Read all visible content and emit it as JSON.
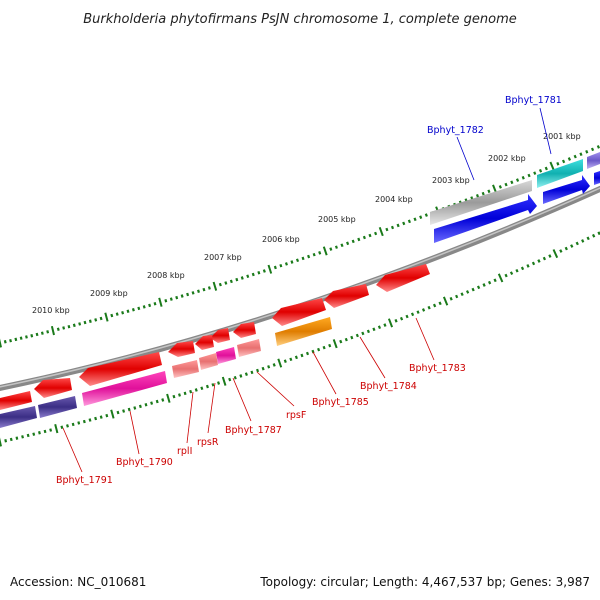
{
  "header": {
    "title": "Burkholderia phytofirmans PsJN chromosome 1, complete genome"
  },
  "footer": {
    "accession": "Accession: NC_010681",
    "summary": "Topology: circular; Length: 4,467,537 bp; Genes: 3,987"
  },
  "scale_labels": [
    "2001 kbp",
    "2002 kbp",
    "2003 kbp",
    "2004 kbp",
    "2005 kbp",
    "2006 kbp",
    "2007 kbp",
    "2008 kbp",
    "2009 kbp",
    "2010 kbp"
  ],
  "gene_labels": {
    "forward": [
      "Bphyt_1781",
      "Bphyt_1782"
    ],
    "reverse": [
      "Bphyt_1783",
      "Bphyt_1784",
      "Bphyt_1785",
      "rpsF",
      "Bphyt_1787",
      "rpsR",
      "rplI",
      "Bphyt_1790",
      "Bphyt_1791"
    ]
  },
  "colors": {
    "forward_label": "#0000cc",
    "reverse_label": "#cc0000",
    "tick": "#1a7a1a",
    "backbone": "#777777"
  }
}
